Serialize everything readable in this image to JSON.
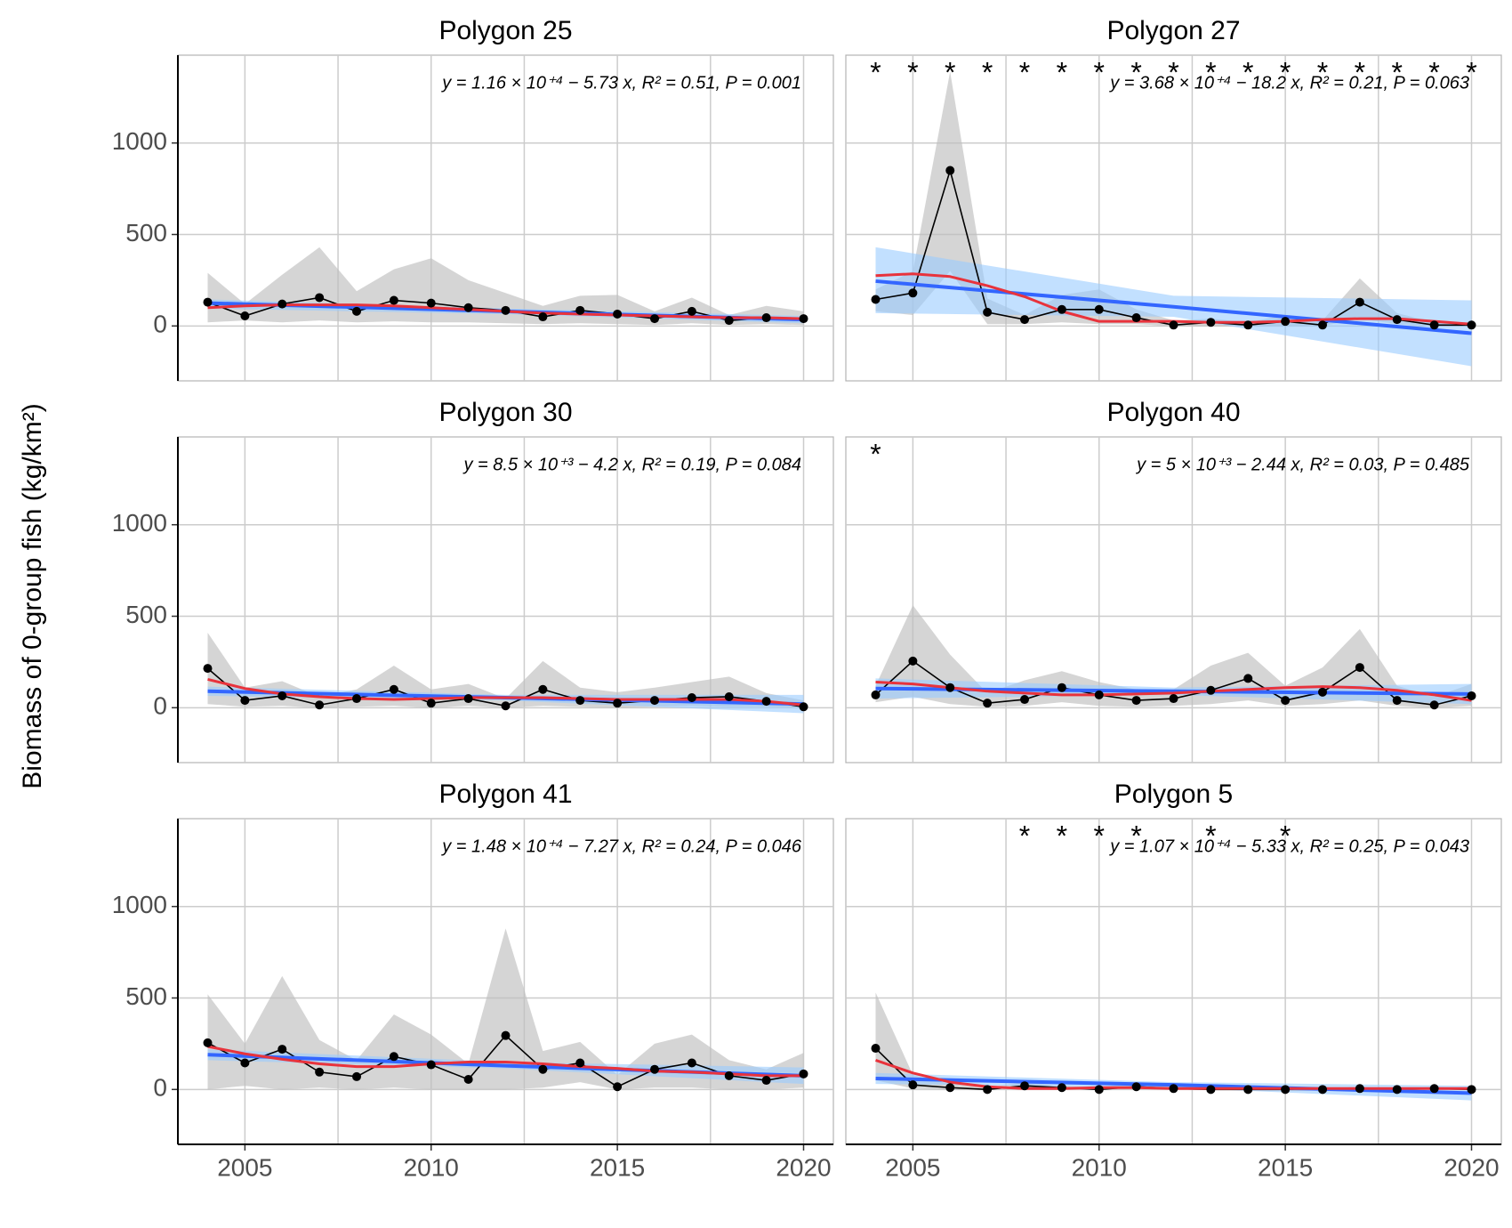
{
  "y_label": "Biomass of 0-group fish (kg/km²)",
  "chart_data": [
    {
      "type": "line",
      "title": "Polygon 25",
      "annotation": "y = 1.16 × 10⁺⁴ − 5.73 x, R² = 0.51, P = 0.001",
      "stars": [],
      "x": [
        2004,
        2005,
        2006,
        2007,
        2008,
        2009,
        2010,
        2011,
        2012,
        2013,
        2014,
        2015,
        2016,
        2017,
        2018,
        2019,
        2020
      ],
      "xlim": [
        2003.2,
        2020.8
      ],
      "xticks": [
        2005,
        2010,
        2015,
        2020
      ],
      "x_minor_grid": [
        2007.5,
        2012.5,
        2017.5
      ],
      "ylim": [
        -300,
        1480
      ],
      "yticks": [
        0,
        500,
        1000
      ],
      "series": [
        {
          "color": "#000000",
          "values": [
            130,
            55,
            120,
            155,
            80,
            140,
            125,
            100,
            85,
            50,
            85,
            65,
            40,
            80,
            30,
            45,
            40
          ]
        },
        {
          "color": "#e8333c",
          "values": [
            100,
            110,
            115,
            115,
            115,
            110,
            100,
            90,
            80,
            70,
            65,
            60,
            55,
            50,
            45,
            45,
            40
          ]
        }
      ],
      "band": {
        "color": "#bebebe",
        "lower": [
          20,
          30,
          20,
          30,
          20,
          25,
          20,
          20,
          15,
          10,
          15,
          10,
          5,
          15,
          5,
          10,
          5
        ],
        "upper": [
          290,
          120,
          280,
          430,
          190,
          310,
          370,
          250,
          180,
          110,
          165,
          170,
          80,
          155,
          60,
          110,
          80
        ]
      },
      "fit": {
        "color": "#3366ff",
        "band_color": "#99ccff",
        "x": [
          2004,
          2012,
          2020
        ],
        "values": [
          125,
          80,
          35
        ],
        "lower": [
          95,
          65,
          15
        ],
        "upper": [
          145,
          95,
          55
        ]
      }
    },
    {
      "type": "line",
      "title": "Polygon 27",
      "annotation": "y = 3.68 × 10⁺⁴ − 18.2 x, R² = 0.21, P = 0.063",
      "stars": [
        {
          "x": 2004,
          "text": "*"
        },
        {
          "x": 2005,
          "text": "*"
        },
        {
          "x": 2006,
          "text": "*"
        },
        {
          "x": 2007,
          "text": "*"
        },
        {
          "x": 2008,
          "text": "*"
        },
        {
          "x": 2009,
          "text": "*"
        },
        {
          "x": 2010,
          "text": "*"
        },
        {
          "x": 2011,
          "text": "*"
        },
        {
          "x": 2012,
          "text": "*"
        },
        {
          "x": 2013,
          "text": "*"
        },
        {
          "x": 2014,
          "text": "*"
        },
        {
          "x": 2015,
          "text": "*"
        },
        {
          "x": 2016,
          "text": "*"
        },
        {
          "x": 2017,
          "text": "*"
        },
        {
          "x": 2018,
          "text": "*"
        },
        {
          "x": 2019,
          "text": "*"
        },
        {
          "x": 2020,
          "text": "*"
        }
      ],
      "x": [
        2004,
        2005,
        2006,
        2007,
        2008,
        2009,
        2010,
        2011,
        2012,
        2013,
        2014,
        2015,
        2016,
        2017,
        2018,
        2019,
        2020
      ],
      "xlim": [
        2003.2,
        2020.8
      ],
      "xticks": [
        2005,
        2010,
        2015,
        2020
      ],
      "x_minor_grid": [
        2007.5,
        2012.5,
        2017.5
      ],
      "ylim": [
        -300,
        1480
      ],
      "yticks": [
        0,
        500,
        1000
      ],
      "series": [
        {
          "color": "#000000",
          "values": [
            145,
            180,
            850,
            75,
            35,
            90,
            90,
            45,
            5,
            20,
            5,
            25,
            5,
            130,
            35,
            5,
            5
          ]
        },
        {
          "color": "#e8333c",
          "values": [
            275,
            285,
            270,
            220,
            160,
            80,
            25,
            25,
            25,
            20,
            20,
            25,
            35,
            40,
            40,
            25,
            10
          ]
        }
      ],
      "band": {
        "color": "#bebebe",
        "lower": [
          80,
          60,
          300,
          10,
          10,
          20,
          10,
          10,
          0,
          0,
          0,
          0,
          0,
          40,
          10,
          0,
          0
        ],
        "upper": [
          200,
          300,
          1390,
          150,
          60,
          170,
          200,
          90,
          30,
          40,
          20,
          60,
          30,
          260,
          70,
          20,
          15
        ]
      },
      "fit": {
        "color": "#3366ff",
        "band_color": "#99ccff",
        "x": [
          2004,
          2012,
          2020
        ],
        "values": [
          245,
          105,
          -40
        ],
        "lower": [
          70,
          50,
          -220
        ],
        "upper": [
          430,
          165,
          140
        ]
      }
    },
    {
      "type": "line",
      "title": "Polygon 30",
      "annotation": "y = 8.5 × 10⁺³ − 4.2 x, R² = 0.19, P = 0.084",
      "stars": [],
      "x": [
        2004,
        2005,
        2006,
        2007,
        2008,
        2009,
        2010,
        2011,
        2012,
        2013,
        2014,
        2015,
        2016,
        2017,
        2018,
        2019,
        2020
      ],
      "xlim": [
        2003.2,
        2020.8
      ],
      "xticks": [
        2005,
        2010,
        2015,
        2020
      ],
      "x_minor_grid": [
        2007.5,
        2012.5,
        2017.5
      ],
      "ylim": [
        -300,
        1480
      ],
      "yticks": [
        0,
        500,
        1000
      ],
      "series": [
        {
          "color": "#000000",
          "values": [
            215,
            40,
            65,
            15,
            50,
            100,
            25,
            50,
            10,
            100,
            40,
            25,
            40,
            55,
            60,
            35,
            5
          ]
        },
        {
          "color": "#e8333c",
          "values": [
            155,
            105,
            75,
            60,
            50,
            45,
            50,
            55,
            55,
            55,
            50,
            45,
            45,
            45,
            45,
            35,
            15
          ]
        }
      ],
      "band": {
        "color": "#bebebe",
        "lower": [
          20,
          5,
          10,
          0,
          5,
          10,
          0,
          10,
          0,
          10,
          5,
          0,
          5,
          10,
          5,
          5,
          0
        ],
        "upper": [
          410,
          110,
          145,
          60,
          100,
          230,
          100,
          130,
          50,
          255,
          110,
          85,
          110,
          140,
          170,
          80,
          40
        ]
      },
      "fit": {
        "color": "#3366ff",
        "band_color": "#99ccff",
        "x": [
          2004,
          2012,
          2020
        ],
        "values": [
          90,
          55,
          20
        ],
        "lower": [
          65,
          40,
          -30
        ],
        "upper": [
          115,
          70,
          70
        ]
      }
    },
    {
      "type": "line",
      "title": "Polygon 40",
      "annotation": "y = 5 × 10⁺³ − 2.44 x, R² = 0.03, P = 0.485",
      "stars": [
        {
          "x": 2004,
          "text": "*"
        }
      ],
      "x": [
        2004,
        2005,
        2006,
        2007,
        2008,
        2009,
        2010,
        2011,
        2012,
        2013,
        2014,
        2015,
        2016,
        2017,
        2018,
        2019,
        2020
      ],
      "xlim": [
        2003.2,
        2020.8
      ],
      "xticks": [
        2005,
        2010,
        2015,
        2020
      ],
      "x_minor_grid": [
        2007.5,
        2012.5,
        2017.5
      ],
      "ylim": [
        -300,
        1480
      ],
      "yticks": [
        0,
        500,
        1000
      ],
      "series": [
        {
          "color": "#000000",
          "values": [
            70,
            255,
            110,
            25,
            45,
            110,
            70,
            40,
            50,
            95,
            160,
            40,
            85,
            220,
            40,
            15,
            65
          ]
        },
        {
          "color": "#e8333c",
          "values": [
            140,
            130,
            110,
            90,
            80,
            70,
            70,
            75,
            80,
            90,
            100,
            110,
            115,
            110,
            95,
            70,
            40
          ]
        }
      ],
      "band": {
        "color": "#bebebe",
        "lower": [
          30,
          60,
          20,
          5,
          10,
          30,
          10,
          5,
          10,
          20,
          40,
          10,
          20,
          40,
          10,
          0,
          10
        ],
        "upper": [
          120,
          560,
          290,
          80,
          150,
          200,
          140,
          100,
          100,
          230,
          300,
          120,
          220,
          430,
          120,
          60,
          130
        ]
      },
      "fit": {
        "color": "#3366ff",
        "band_color": "#99ccff",
        "x": [
          2004,
          2012,
          2020
        ],
        "values": [
          105,
          90,
          75
        ],
        "lower": [
          50,
          70,
          20
        ],
        "upper": [
          160,
          110,
          130
        ]
      }
    },
    {
      "type": "line",
      "title": "Polygon 41",
      "annotation": "y = 1.48 × 10⁺⁴ − 7.27 x, R² = 0.24, P = 0.046",
      "stars": [],
      "x": [
        2004,
        2005,
        2006,
        2007,
        2008,
        2009,
        2010,
        2011,
        2012,
        2013,
        2014,
        2015,
        2016,
        2017,
        2018,
        2019,
        2020
      ],
      "xlim": [
        2003.2,
        2020.8
      ],
      "xticks": [
        2005,
        2010,
        2015,
        2020
      ],
      "x_minor_grid": [
        2007.5,
        2012.5,
        2017.5
      ],
      "ylim": [
        -300,
        1480
      ],
      "yticks": [
        0,
        500,
        1000
      ],
      "series": [
        {
          "color": "#000000",
          "values": [
            255,
            145,
            220,
            95,
            70,
            180,
            135,
            55,
            295,
            110,
            145,
            15,
            110,
            145,
            75,
            50,
            85
          ]
        },
        {
          "color": "#e8333c",
          "values": [
            235,
            195,
            165,
            140,
            125,
            125,
            140,
            150,
            150,
            140,
            125,
            115,
            100,
            95,
            85,
            75,
            75
          ]
        }
      ],
      "band": {
        "color": "#bebebe",
        "lower": [
          0,
          20,
          0,
          10,
          0,
          10,
          0,
          0,
          0,
          10,
          40,
          0,
          10,
          10,
          0,
          0,
          10
        ],
        "upper": [
          520,
          250,
          620,
          270,
          160,
          410,
          300,
          140,
          880,
          210,
          260,
          80,
          250,
          300,
          160,
          110,
          200
        ]
      },
      "fit": {
        "color": "#3366ff",
        "band_color": "#99ccff",
        "x": [
          2004,
          2012,
          2020
        ],
        "values": [
          190,
          130,
          75
        ],
        "lower": [
          160,
          115,
          30
        ],
        "upper": [
          220,
          150,
          120
        ]
      }
    },
    {
      "type": "line",
      "title": "Polygon 5",
      "annotation": "y = 1.07 × 10⁺⁴ − 5.33 x, R² = 0.25, P = 0.043",
      "stars": [
        {
          "x": 2008,
          "text": "*"
        },
        {
          "x": 2009,
          "text": "*"
        },
        {
          "x": 2010,
          "text": "*"
        },
        {
          "x": 2011,
          "text": "*"
        },
        {
          "x": 2013,
          "text": "*"
        },
        {
          "x": 2015,
          "text": "*"
        }
      ],
      "x": [
        2004,
        2005,
        2006,
        2007,
        2008,
        2009,
        2010,
        2011,
        2012,
        2013,
        2014,
        2015,
        2016,
        2017,
        2018,
        2019,
        2020
      ],
      "xlim": [
        2003.2,
        2020.8
      ],
      "xticks": [
        2005,
        2010,
        2015,
        2020
      ],
      "x_minor_grid": [
        2007.5,
        2012.5,
        2017.5
      ],
      "ylim": [
        -300,
        1480
      ],
      "yticks": [
        0,
        500,
        1000
      ],
      "series": [
        {
          "color": "#000000",
          "values": [
            225,
            25,
            10,
            0,
            20,
            10,
            0,
            15,
            5,
            0,
            0,
            0,
            0,
            5,
            0,
            5,
            0
          ]
        },
        {
          "color": "#e8333c",
          "values": [
            160,
            90,
            40,
            15,
            5,
            5,
            10,
            10,
            5,
            5,
            5,
            5,
            5,
            5,
            5,
            5,
            5
          ]
        }
      ],
      "band": {
        "color": "#bebebe",
        "lower": [
          50,
          5,
          0,
          0,
          5,
          0,
          0,
          5,
          0,
          0,
          0,
          0,
          0,
          0,
          0,
          0,
          0
        ],
        "upper": [
          530,
          80,
          30,
          10,
          40,
          20,
          10,
          40,
          20,
          5,
          5,
          5,
          5,
          15,
          5,
          15,
          5
        ]
      },
      "fit": {
        "color": "#3366ff",
        "band_color": "#99ccff",
        "x": [
          2004,
          2012,
          2020
        ],
        "values": [
          60,
          25,
          -20
        ],
        "lower": [
          30,
          10,
          -60
        ],
        "upper": [
          90,
          40,
          20
        ]
      }
    }
  ]
}
